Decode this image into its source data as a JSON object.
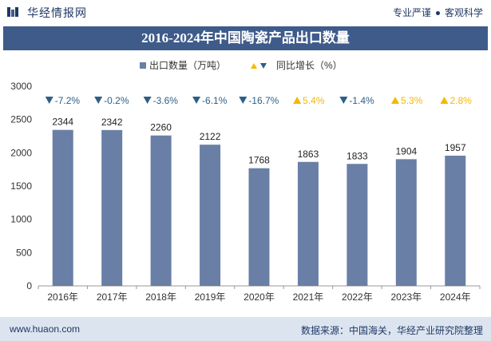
{
  "header": {
    "brand": "华经情报网",
    "tag1": "专业严谨",
    "tag2": "客观科学"
  },
  "title": "2016-2024年中国陶瓷产品出口数量",
  "footer": {
    "url": "www.huaon.com",
    "source": "数据来源：中国海关，华经产业研究院整理"
  },
  "colors": {
    "bar": "#6a7fa6",
    "down": "#2d5f86",
    "up": "#f5b800",
    "title_band": "#3e5b8a",
    "footer_band": "#dce4f0"
  },
  "chart_data": {
    "type": "bar",
    "categories": [
      "2016年",
      "2017年",
      "2018年",
      "2019年",
      "2020年",
      "2021年",
      "2022年",
      "2023年",
      "2024年"
    ],
    "series": [
      {
        "name": "出口数量（万吨）",
        "values": [
          2344,
          2342,
          2260,
          2122,
          1768,
          1863,
          1833,
          1904,
          1957
        ]
      },
      {
        "name": "同比增长（%）",
        "values": [
          -7.2,
          -0.2,
          -3.6,
          -6.1,
          -16.7,
          5.4,
          -1.4,
          5.3,
          2.8
        ]
      }
    ],
    "value_labels": [
      "2344",
      "2342",
      "2260",
      "2122",
      "1768",
      "1863",
      "1833",
      "1904",
      "1957"
    ],
    "growth_labels": [
      "-7.2%",
      "-0.2%",
      "-3.6%",
      "-6.1%",
      "-16.7%",
      "5.4%",
      "-1.4%",
      "5.3%",
      "2.8%"
    ],
    "y_ticks": [
      "0",
      "500",
      "1000",
      "1500",
      "2000",
      "2500",
      "3000"
    ],
    "ylim": [
      0,
      3000
    ],
    "legend_position": "top-center",
    "grid": false
  }
}
